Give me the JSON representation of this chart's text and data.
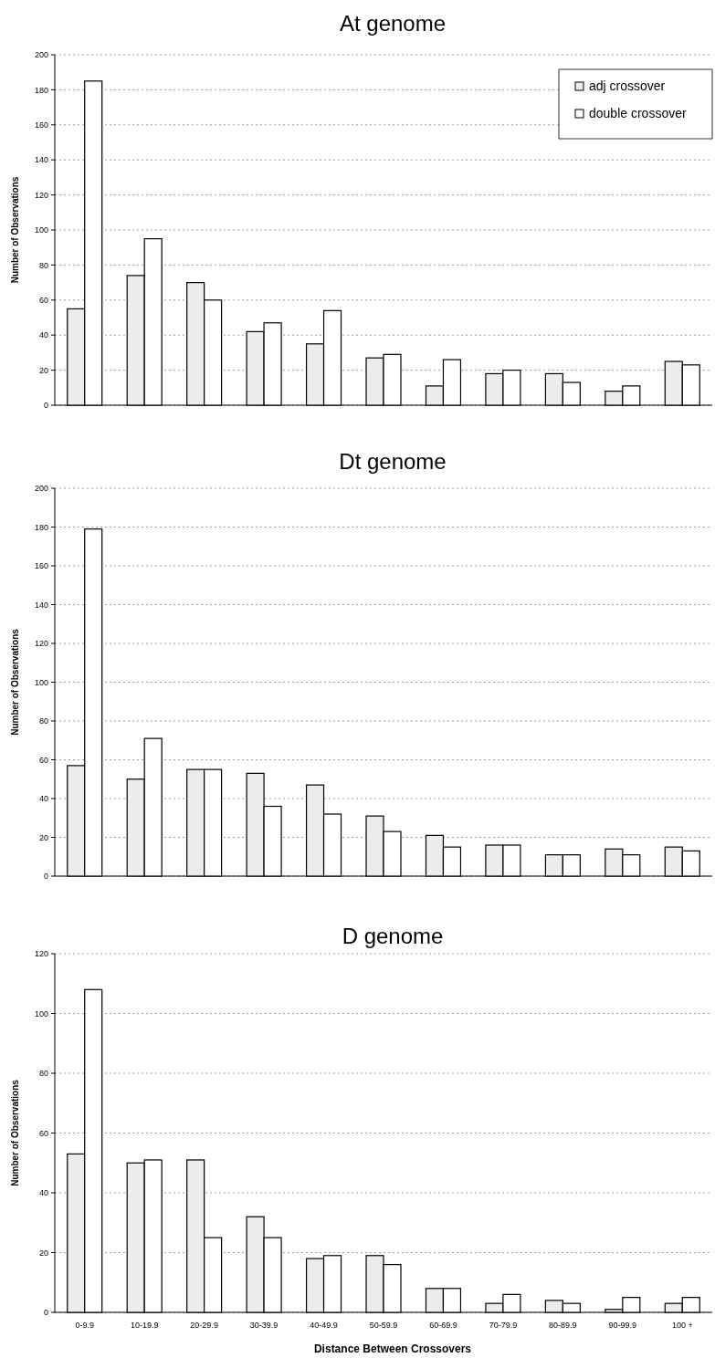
{
  "chart_data": [
    {
      "type": "bar",
      "title": "At genome",
      "ylabel": "Number of Observations",
      "categories": [
        null,
        null,
        null,
        null,
        null,
        null,
        null,
        null,
        null,
        null,
        null
      ],
      "tick_labels": "y",
      "ylim": [
        0,
        200
      ],
      "yticks": [
        0,
        20,
        40,
        60,
        80,
        100,
        120,
        140,
        160,
        180,
        200
      ],
      "grid": "y",
      "legend": "top right",
      "series": [
        {
          "name": "adj crossover",
          "color": "#ececec",
          "values": [
            55,
            74,
            70,
            42,
            35,
            27,
            11,
            18,
            18,
            8,
            25
          ]
        },
        {
          "name": "double crossover",
          "color": "#ffffff",
          "values": [
            185,
            95,
            60,
            47,
            54,
            29,
            26,
            20,
            13,
            11,
            23
          ]
        }
      ]
    },
    {
      "type": "bar",
      "title": "Dt genome",
      "ylabel": "Number of Observations",
      "categories": [
        null,
        null,
        null,
        null,
        null,
        null,
        null,
        null,
        null,
        null,
        null
      ],
      "tick_labels": "y",
      "ylim": [
        0,
        200
      ],
      "yticks": [
        0,
        20,
        40,
        60,
        80,
        100,
        120,
        140,
        160,
        180,
        200
      ],
      "grid": "y",
      "series": [
        {
          "color": "#ececec",
          "values": [
            57,
            50,
            55,
            53,
            47,
            31,
            21,
            16,
            11,
            14,
            15
          ]
        },
        {
          "color": "#ffffff",
          "values": [
            179,
            71,
            55,
            36,
            32,
            23,
            15,
            16,
            11,
            11,
            13
          ]
        }
      ]
    },
    {
      "type": "bar",
      "title": "D genome",
      "xlabel": "Distance Between Crossovers",
      "ylabel": "Number of Observations",
      "categories": [
        "0-9.9",
        "10-19.9",
        "20-29.9",
        "30-39.9",
        "40-49.9",
        "50-59.9",
        "60-69.9",
        "70-79.9",
        "80-89.9",
        "90-99.9",
        "100 +"
      ],
      "ylim": [
        0,
        120
      ],
      "yticks": [
        0,
        20,
        40,
        60,
        80,
        100,
        120
      ],
      "grid": "y",
      "series": [
        {
          "color": "#ececec",
          "values": [
            53,
            50,
            51,
            32,
            18,
            19,
            8,
            3,
            4,
            1,
            3
          ]
        },
        {
          "color": "#ffffff",
          "values": [
            108,
            51,
            25,
            25,
            19,
            16,
            8,
            6,
            3,
            5,
            5
          ]
        }
      ]
    }
  ]
}
